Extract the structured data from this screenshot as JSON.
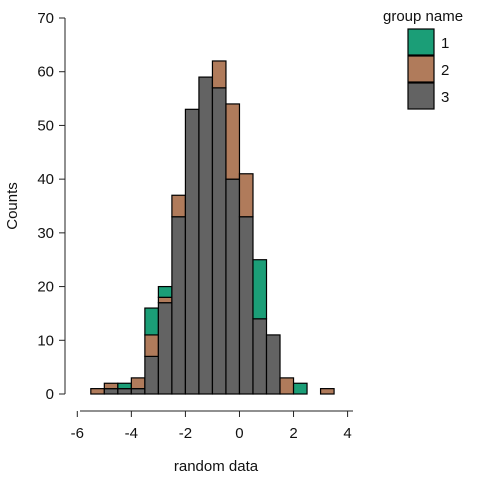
{
  "chart_data": {
    "type": "bar",
    "stacked": true,
    "xlabel": "random data",
    "ylabel": "Counts",
    "title": "",
    "xlim": [
      -5.9,
      4.2
    ],
    "ylim": [
      0,
      70
    ],
    "x_ticks": [
      -6,
      -4,
      -2,
      0,
      2,
      4
    ],
    "y_ticks": [
      0,
      10,
      20,
      30,
      40,
      50,
      60,
      70
    ],
    "grid": false,
    "bin_edges": [
      -5.5,
      -5.0,
      -4.5,
      -4.0,
      -3.5,
      -3.0,
      -2.5,
      -2.0,
      -1.5,
      -1.0,
      -0.5,
      0.0,
      0.5,
      1.0,
      1.5,
      2.0,
      2.5,
      3.0,
      3.5
    ],
    "series": [
      {
        "name": "3",
        "color": "#636363",
        "values": [
          0,
          1,
          1,
          1,
          7,
          17,
          33,
          53,
          59,
          57,
          40,
          33,
          14,
          11,
          0,
          0,
          0,
          0
        ]
      },
      {
        "name": "2",
        "color": "#b07b5b",
        "values": [
          1,
          1,
          0,
          2,
          4,
          1,
          4,
          0,
          0,
          5,
          14,
          8,
          0,
          0,
          3,
          0,
          0,
          1
        ]
      },
      {
        "name": "1",
        "color": "#1b9e77",
        "values": [
          0,
          0,
          1,
          0,
          5,
          2,
          0,
          0,
          0,
          0,
          0,
          0,
          11,
          0,
          0,
          2,
          0,
          0
        ]
      }
    ],
    "legend": {
      "title": "group name",
      "placement": "right",
      "items": [
        {
          "label": "1",
          "color": "#1b9e77"
        },
        {
          "label": "2",
          "color": "#b07b5b"
        },
        {
          "label": "3",
          "color": "#636363"
        }
      ]
    }
  }
}
